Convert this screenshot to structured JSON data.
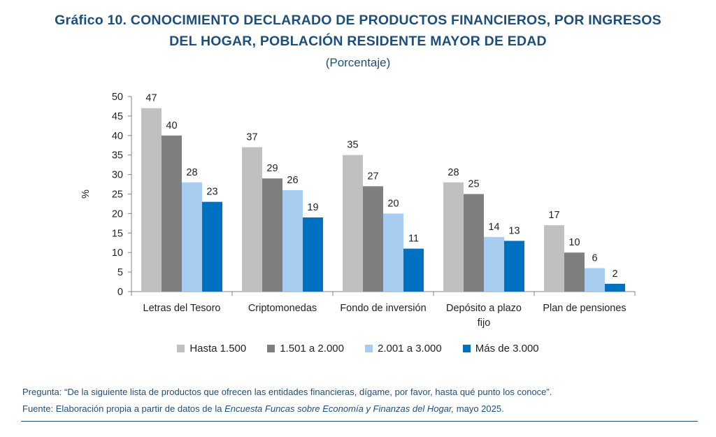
{
  "header": {
    "title_line1": "Gráfico 10. CONOCIMIENTO DECLARADO DE PRODUCTOS FINANCIEROS, POR INGRESOS",
    "title_line2": "DEL HOGAR, POBLACIÓN RESIDENTE MAYOR DE EDAD",
    "subtitle": "(Porcentaje)"
  },
  "chart_data": {
    "type": "bar",
    "ylabel": "%",
    "ylim": [
      0,
      50
    ],
    "yticks": [
      0,
      5,
      10,
      15,
      20,
      25,
      30,
      35,
      40,
      45,
      50
    ],
    "categories": [
      [
        "Letras del Tesoro"
      ],
      [
        "Criptomonedas"
      ],
      [
        "Fondo de inversión"
      ],
      [
        "Depósito a plazo",
        "fijo"
      ],
      [
        "Plan de pensiones"
      ]
    ],
    "series": [
      {
        "name": "Hasta 1.500",
        "color": "#c0c0c0",
        "values": [
          47,
          37,
          35,
          28,
          17
        ]
      },
      {
        "name": "1.501 a 2.000",
        "color": "#7f7f7f",
        "values": [
          40,
          29,
          27,
          25,
          10
        ]
      },
      {
        "name": "2.001 a 3.000",
        "color": "#a9cdf0",
        "values": [
          28,
          26,
          20,
          14,
          6
        ]
      },
      {
        "name": "Más de 3.000",
        "color": "#0070c0",
        "values": [
          23,
          19,
          11,
          13,
          2
        ]
      }
    ],
    "legend_position": "bottom",
    "grid": false
  },
  "notes": {
    "question": "Pregunta: “De la siguiente lista de productos que ofrecen las entidades financieras, dígame, por favor, hasta qué punto los conoce”.",
    "source_prefix": "Fuente: Elaboración propia a partir de datos de la ",
    "source_italic": "Encuesta Funcas sobre Economía y Finanzas del Hogar,",
    "source_suffix": " mayo 2025."
  }
}
